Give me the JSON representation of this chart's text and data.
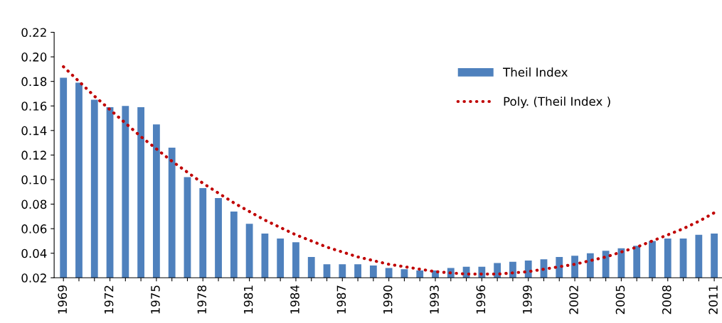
{
  "chart_data": {
    "type": "bar",
    "categories": [
      "1969",
      null,
      null,
      "1972",
      null,
      null,
      "1975",
      null,
      null,
      "1978",
      null,
      null,
      "1981",
      null,
      null,
      "1984",
      null,
      null,
      "1987",
      null,
      null,
      "1990",
      null,
      null,
      "1993",
      null,
      null,
      "1996",
      null,
      null,
      "1999",
      null,
      null,
      "2002",
      null,
      null,
      "2005",
      null,
      null,
      "2008",
      null,
      null,
      "2011"
    ],
    "series": [
      {
        "name": "Theil Index",
        "color": "#4f81bd",
        "values": [
          0.183,
          0.179,
          0.165,
          0.159,
          0.16,
          0.159,
          0.145,
          0.126,
          0.102,
          0.093,
          0.085,
          0.074,
          0.064,
          0.056,
          0.052,
          0.049,
          0.037,
          0.031,
          0.031,
          0.031,
          0.03,
          0.028,
          0.027,
          0.026,
          0.026,
          0.028,
          0.029,
          0.029,
          0.032,
          0.033,
          0.034,
          0.035,
          0.037,
          0.038,
          0.04,
          0.042,
          0.044,
          0.046,
          0.05,
          0.052,
          0.052,
          0.055,
          0.056
        ]
      },
      {
        "name": "Poly. (Theil Index )",
        "type": "line",
        "color": "#c00000",
        "line_style": "dotted",
        "values": [
          0.192,
          0.18,
          0.168,
          0.157,
          0.146,
          0.135,
          0.125,
          0.115,
          0.106,
          0.097,
          0.089,
          0.081,
          0.074,
          0.067,
          0.061,
          0.055,
          0.05,
          0.045,
          0.041,
          0.037,
          0.034,
          0.031,
          0.029,
          0.027,
          0.025,
          0.024,
          0.023,
          0.023,
          0.023,
          0.024,
          0.025,
          0.027,
          0.029,
          0.031,
          0.034,
          0.037,
          0.041,
          0.045,
          0.05,
          0.055,
          0.06,
          0.066,
          0.073
        ]
      }
    ],
    "ylim": [
      0.02,
      0.22
    ],
    "yticks": [
      {
        "value": 0.02,
        "label": "0.02"
      },
      {
        "value": 0.04,
        "label": "0.04"
      },
      {
        "value": 0.06,
        "label": "0.06"
      },
      {
        "value": 0.08,
        "label": "0.08"
      },
      {
        "value": 0.1,
        "label": "0.10"
      },
      {
        "value": 0.12,
        "label": "0.12"
      },
      {
        "value": 0.14,
        "label": "0.14"
      },
      {
        "value": 0.16,
        "label": "0.16"
      },
      {
        "value": 0.18,
        "label": "0.18"
      },
      {
        "value": 0.2,
        "label": "0.20"
      },
      {
        "value": 0.22,
        "label": "0.22"
      }
    ],
    "grid": false,
    "legend": "top right"
  }
}
